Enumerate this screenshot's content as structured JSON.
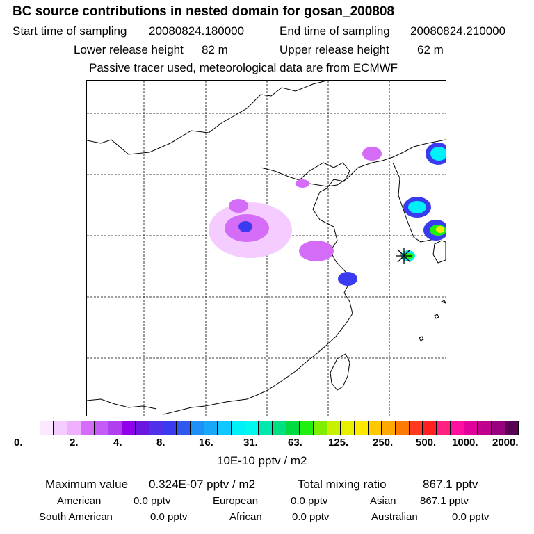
{
  "header": {
    "title": "BC  source contributions in nested domain for gosan_200808",
    "start_label": "Start time of sampling",
    "start_value": "20080824.180000",
    "end_label": "End time of sampling",
    "end_value": "20080824.210000",
    "lower_label": "Lower release height",
    "lower_value": "82 m",
    "upper_label": "Upper release height",
    "upper_value": "62 m",
    "note": "Passive tracer used, meteorological data are from ECMWF"
  },
  "legend": {
    "colors": [
      "#ffffff",
      "#fbe8ff",
      "#f5ccff",
      "#eeb0ff",
      "#d46cf8",
      "#c55cf5",
      "#b040ef",
      "#9000e8",
      "#6a18e0",
      "#5030e8",
      "#3a3af0",
      "#2f58f0",
      "#1f90f5",
      "#18a8f8",
      "#10c8ff",
      "#00f0f8",
      "#00f8f0",
      "#00e8b0",
      "#00e080",
      "#00dc40",
      "#20f010",
      "#80ee00",
      "#c8f000",
      "#e8f000",
      "#ffe800",
      "#ffc800",
      "#ffa800",
      "#ff7a00",
      "#ff3a20",
      "#ff2020",
      "#ff2080",
      "#ff10a0",
      "#e0009c",
      "#c0008c",
      "#980080",
      "#5a0050"
    ],
    "ticks": [
      "0.",
      "2.",
      "4.",
      "8.",
      "16.",
      "31.",
      "63.",
      "125.",
      "250.",
      "500.",
      "1000.",
      "2000."
    ],
    "unit": "10E-10 pptv / m2"
  },
  "map": {
    "grid_lines": 5,
    "receptor": "gosan",
    "plumes": [
      {
        "color": "#f5ccff"
      },
      {
        "color": "#d46cf8"
      },
      {
        "color": "#3a3af0"
      },
      {
        "color": "#00f0f8"
      },
      {
        "color": "#20f010"
      },
      {
        "color": "#ffe800"
      }
    ]
  },
  "stats": {
    "max_label": "Maximum value",
    "max_value": "0.324E-07 pptv / m2",
    "total_label": "Total mixing ratio",
    "total_value": "867.1 pptv",
    "regions": [
      {
        "name": "American",
        "value": "0.0 pptv"
      },
      {
        "name": "European",
        "value": "0.0 pptv"
      },
      {
        "name": "Asian",
        "value": "867.1 pptv"
      },
      {
        "name": "South American",
        "value": "0.0 pptv"
      },
      {
        "name": "African",
        "value": "0.0 pptv"
      },
      {
        "name": "Australian",
        "value": "0.0 pptv"
      }
    ]
  }
}
